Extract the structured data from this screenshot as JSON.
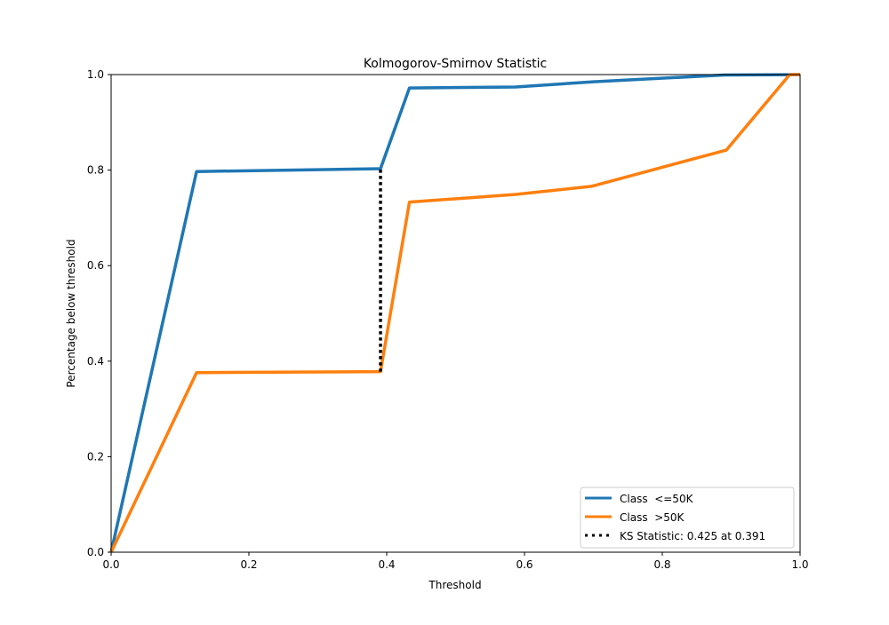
{
  "chart_data": {
    "type": "line",
    "title": "Kolmogorov-Smirnov Statistic",
    "xlabel": "Threshold",
    "ylabel": "Percentage below threshold",
    "xlim": [
      0,
      1
    ],
    "ylim": [
      0,
      1
    ],
    "xticks": [
      "0.0",
      "0.2",
      "0.4",
      "0.6",
      "0.8",
      "1.0"
    ],
    "yticks": [
      "0.0",
      "0.2",
      "0.4",
      "0.6",
      "0.8",
      "1.0"
    ],
    "grid": false,
    "legend_position": "lower-right",
    "series": [
      {
        "name": "Class  <=50K",
        "color": "#1f77b4",
        "x": [
          0,
          0.124,
          0.391,
          0.433,
          0.587,
          0.7,
          0.89,
          1.0
        ],
        "y": [
          0,
          0.797,
          0.803,
          0.972,
          0.974,
          0.985,
          0.999,
          1.0
        ]
      },
      {
        "name": "Class  >50K",
        "color": "#ff7f0e",
        "x": [
          0,
          0.124,
          0.391,
          0.433,
          0.587,
          0.697,
          0.893,
          0.985,
          1.0
        ],
        "y": [
          0,
          0.376,
          0.378,
          0.733,
          0.749,
          0.766,
          0.842,
          1.0,
          1.0
        ]
      }
    ],
    "ks_line": {
      "name": "KS Statistic: 0.425 at 0.391",
      "x": 0.391,
      "y_from": 0.378,
      "y_to": 0.803,
      "color": "#000000"
    }
  }
}
